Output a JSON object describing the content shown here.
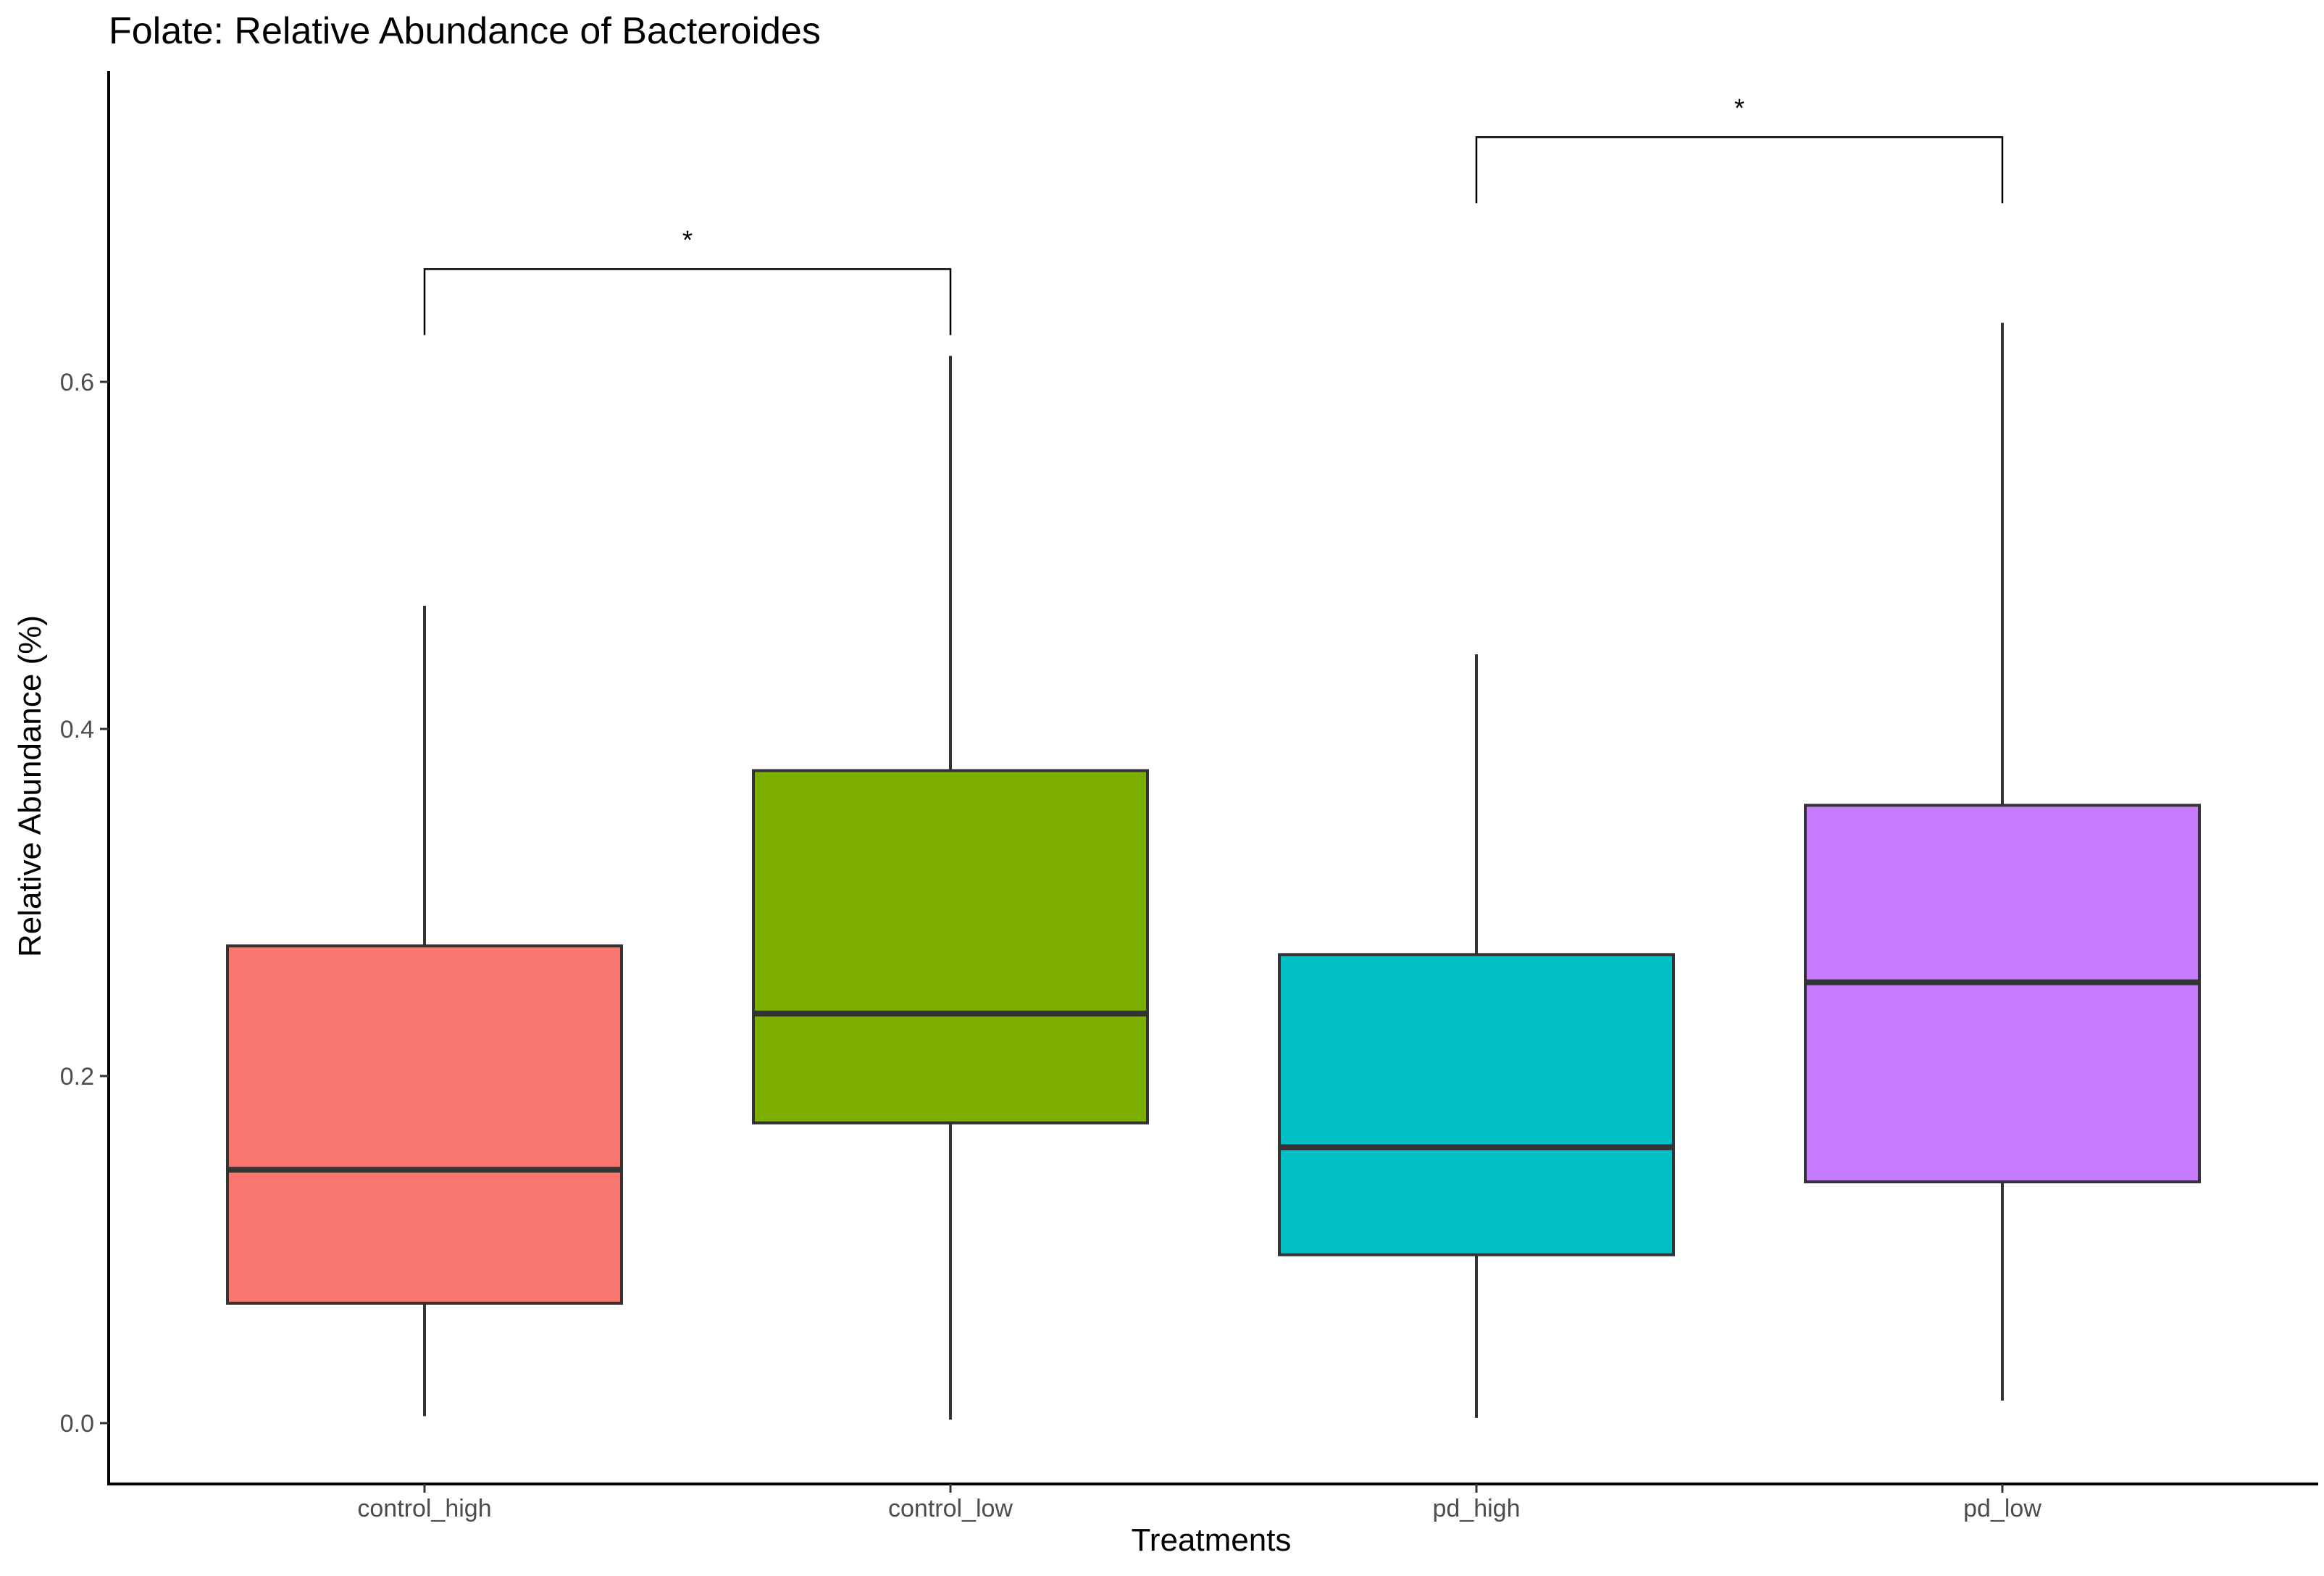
{
  "chart_data": {
    "type": "box",
    "title": "Folate: Relative Abundance of Bacteroides",
    "xlabel": "Treatments",
    "ylabel": "Relative Abundance (%)",
    "ylim": [
      -0.035,
      0.78
    ],
    "yticks": [
      0.0,
      0.2,
      0.4,
      0.6
    ],
    "ytick_labels": [
      "0.0",
      "0.2",
      "0.4",
      "0.6"
    ],
    "categories": [
      "control_high",
      "control_low",
      "pd_high",
      "pd_low"
    ],
    "boxes": [
      {
        "category": "control_high",
        "min": 0.004,
        "q1": 0.069,
        "median": 0.146,
        "q3": 0.275,
        "max": 0.471,
        "color": "#F8766D"
      },
      {
        "category": "control_low",
        "min": 0.002,
        "q1": 0.173,
        "median": 0.236,
        "q3": 0.376,
        "max": 0.615,
        "color": "#7CAE00"
      },
      {
        "category": "pd_high",
        "min": 0.003,
        "q1": 0.097,
        "median": 0.159,
        "q3": 0.27,
        "max": 0.443,
        "color": "#00BFC4"
      },
      {
        "category": "pd_low",
        "min": 0.013,
        "q1": 0.139,
        "median": 0.254,
        "q3": 0.356,
        "max": 0.634,
        "color": "#C77CFF"
      }
    ],
    "significance": [
      {
        "from": "control_high",
        "to": "control_low",
        "y": 0.665,
        "label": "*"
      },
      {
        "from": "pd_high",
        "to": "pd_low",
        "y": 0.741,
        "label": "*"
      }
    ],
    "grid": false,
    "legend": "none"
  }
}
